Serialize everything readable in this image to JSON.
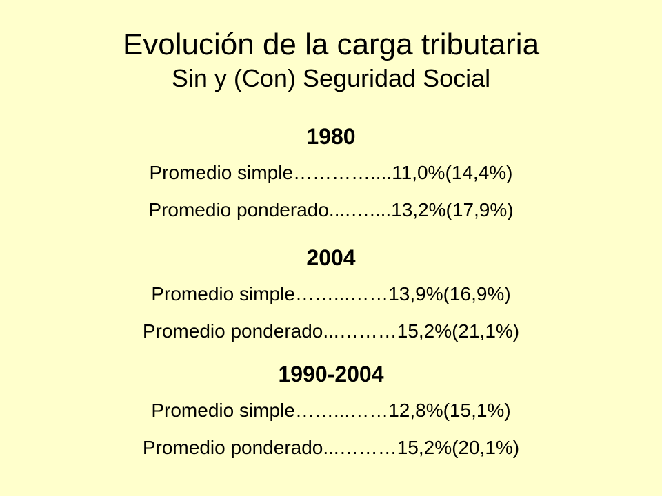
{
  "slide": {
    "title": "Evolución de la carga tributaria",
    "subtitle": "Sin y (Con) Seguridad Social",
    "sections": [
      {
        "year": "1980",
        "lines": [
          "Promedio simple…………....11,0%(14,4%)",
          "Promedio ponderado....…....13,2%(17,9%)"
        ]
      },
      {
        "year": "2004",
        "lines": [
          "Promedio simple……...……13,9%(16,9%)",
          "Promedio ponderado...………15,2%(21,1%)"
        ]
      },
      {
        "year": "1990-2004",
        "lines": [
          "Promedio simple……...……12,8%(15,1%)",
          "Promedio ponderado...………15,2%(20,1%)"
        ]
      }
    ]
  },
  "colors": {
    "background": "#FFFFCC",
    "text": "#000000"
  }
}
